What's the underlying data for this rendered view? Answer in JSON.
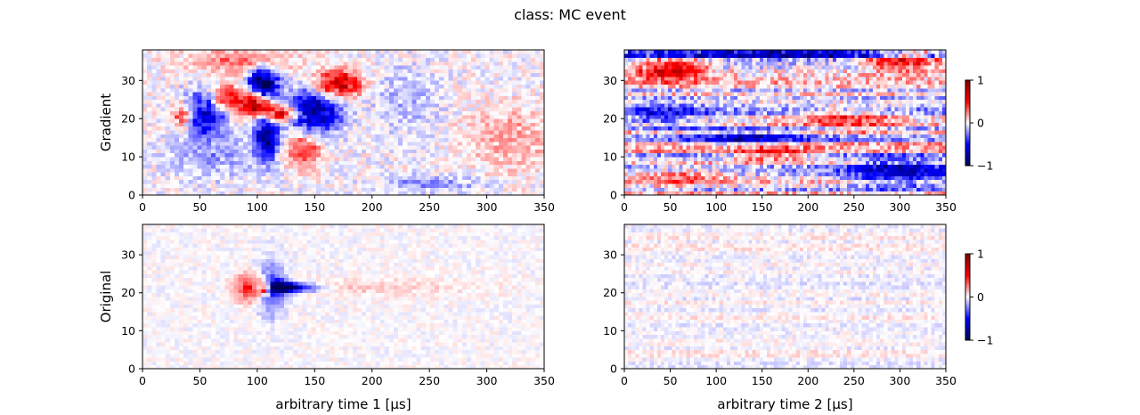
{
  "chart_data": {
    "type": "heatmap",
    "title": "class: MC event",
    "grid": false,
    "colormap": {
      "name": "seismic",
      "low": "#000050",
      "mid": "#ffffff",
      "high": "#800000"
    },
    "panels": [
      {
        "id": "gradient-time1",
        "ylabel": "Gradient",
        "xlabel": "",
        "xlim": [
          0,
          350
        ],
        "ylim": [
          0,
          38
        ],
        "xticks": [
          "0",
          "50",
          "100",
          "150",
          "200",
          "250",
          "300",
          "350"
        ],
        "yticks": [
          "0",
          "10",
          "20",
          "30"
        ],
        "blobs": [
          {
            "x": 105,
            "y": 29,
            "sx": 9,
            "sy": 3,
            "v": -1.0
          },
          {
            "x": 55,
            "y": 22,
            "sx": 12,
            "sy": 4,
            "v": -0.85
          },
          {
            "x": 150,
            "y": 22,
            "sx": 16,
            "sy": 4,
            "v": -0.8
          },
          {
            "x": 108,
            "y": 15,
            "sx": 7,
            "sy": 4,
            "v": -0.85
          },
          {
            "x": 100,
            "y": 24,
            "sx": 8,
            "sy": 2,
            "v": 0.9
          },
          {
            "x": 120,
            "y": 21.5,
            "sx": 10,
            "sy": 1.5,
            "v": 0.8
          },
          {
            "x": 170,
            "y": 29,
            "sx": 14,
            "sy": 2.5,
            "v": 0.75
          },
          {
            "x": 70,
            "y": 25,
            "sx": 16,
            "sy": 3,
            "v": 0.55
          },
          {
            "x": 35,
            "y": 21,
            "sx": 5,
            "sy": 2,
            "v": 0.6
          },
          {
            "x": 140,
            "y": 12,
            "sx": 10,
            "sy": 3,
            "v": 0.45
          },
          {
            "x": 85,
            "y": 35,
            "sx": 30,
            "sy": 2,
            "v": 0.3
          },
          {
            "x": 250,
            "y": 3,
            "sx": 30,
            "sy": 1.5,
            "v": -0.22
          },
          {
            "x": 230,
            "y": 25,
            "sx": 20,
            "sy": 6,
            "v": -0.15
          },
          {
            "x": 320,
            "y": 15,
            "sx": 25,
            "sy": 6,
            "v": 0.18
          },
          {
            "x": 60,
            "y": 10,
            "sx": 25,
            "sy": 4,
            "v": -0.2
          }
        ],
        "noise": 0.12,
        "streak": 0
      },
      {
        "id": "gradient-time2",
        "ylabel": "",
        "xlabel": "",
        "xlim": [
          0,
          350
        ],
        "ylim": [
          0,
          38
        ],
        "xticks": [
          "0",
          "50",
          "100",
          "150",
          "200",
          "250",
          "300",
          "350"
        ],
        "yticks": [
          "0",
          "10",
          "20",
          "30"
        ],
        "blobs": [
          {
            "x": 180,
            "y": 37,
            "sx": 200,
            "sy": 1.2,
            "v": -0.75
          },
          {
            "x": 50,
            "y": 33,
            "sx": 25,
            "sy": 2,
            "v": 0.7
          },
          {
            "x": 305,
            "y": 36,
            "sx": 30,
            "sy": 2,
            "v": 0.7
          },
          {
            "x": 130,
            "y": 15,
            "sx": 50,
            "sy": 1.5,
            "v": -0.5
          },
          {
            "x": 300,
            "y": 6,
            "sx": 40,
            "sy": 2.5,
            "v": -0.55
          },
          {
            "x": 160,
            "y": 11,
            "sx": 30,
            "sy": 1.5,
            "v": 0.45
          },
          {
            "x": 240,
            "y": 20,
            "sx": 40,
            "sy": 2,
            "v": 0.35
          },
          {
            "x": 40,
            "y": 21,
            "sx": 30,
            "sy": 2,
            "v": -0.35
          },
          {
            "x": 60,
            "y": 5,
            "sx": 40,
            "sy": 2,
            "v": 0.3
          }
        ],
        "noise": 0.2,
        "streak": 0.22
      },
      {
        "id": "original-time1",
        "ylabel": "Original",
        "xlabel": "arbitrary time 1 [μs]",
        "xlim": [
          0,
          350
        ],
        "ylim": [
          0,
          38
        ],
        "xticks": [
          "0",
          "50",
          "100",
          "150",
          "200",
          "250",
          "300",
          "350"
        ],
        "yticks": [
          "0",
          "10",
          "20",
          "30"
        ],
        "blobs": [
          {
            "x": 106,
            "y": 21.5,
            "sx": 4,
            "sy": 1.2,
            "v": 1.0
          },
          {
            "x": 118,
            "y": 21.5,
            "sx": 10,
            "sy": 1.1,
            "v": -1.0
          },
          {
            "x": 135,
            "y": 21.5,
            "sx": 14,
            "sy": 0.8,
            "v": -0.6
          },
          {
            "x": 92,
            "y": 21.5,
            "sx": 8,
            "sy": 2.5,
            "v": 0.45
          },
          {
            "x": 112,
            "y": 21.5,
            "sx": 8,
            "sy": 5,
            "v": -0.35
          },
          {
            "x": 200,
            "y": 21.5,
            "sx": 60,
            "sy": 1.5,
            "v": 0.1
          }
        ],
        "noise": 0.06,
        "streak": 0
      },
      {
        "id": "original-time2",
        "ylabel": "",
        "xlabel": "arbitrary time 2 [μs]",
        "xlim": [
          0,
          350
        ],
        "ylim": [
          0,
          38
        ],
        "xticks": [
          "0",
          "50",
          "100",
          "150",
          "200",
          "250",
          "300",
          "350"
        ],
        "yticks": [
          "0",
          "10",
          "20",
          "30"
        ],
        "blobs": [],
        "noise": 0.07,
        "streak": 0.05
      }
    ],
    "colorbars": [
      {
        "id": "colorbar-top",
        "min": -1,
        "max": 1,
        "ticks": [
          "−1",
          "0",
          "1"
        ]
      },
      {
        "id": "colorbar-bottom",
        "min": -1,
        "max": 1,
        "ticks": [
          "−1",
          "0",
          "1"
        ]
      }
    ]
  }
}
